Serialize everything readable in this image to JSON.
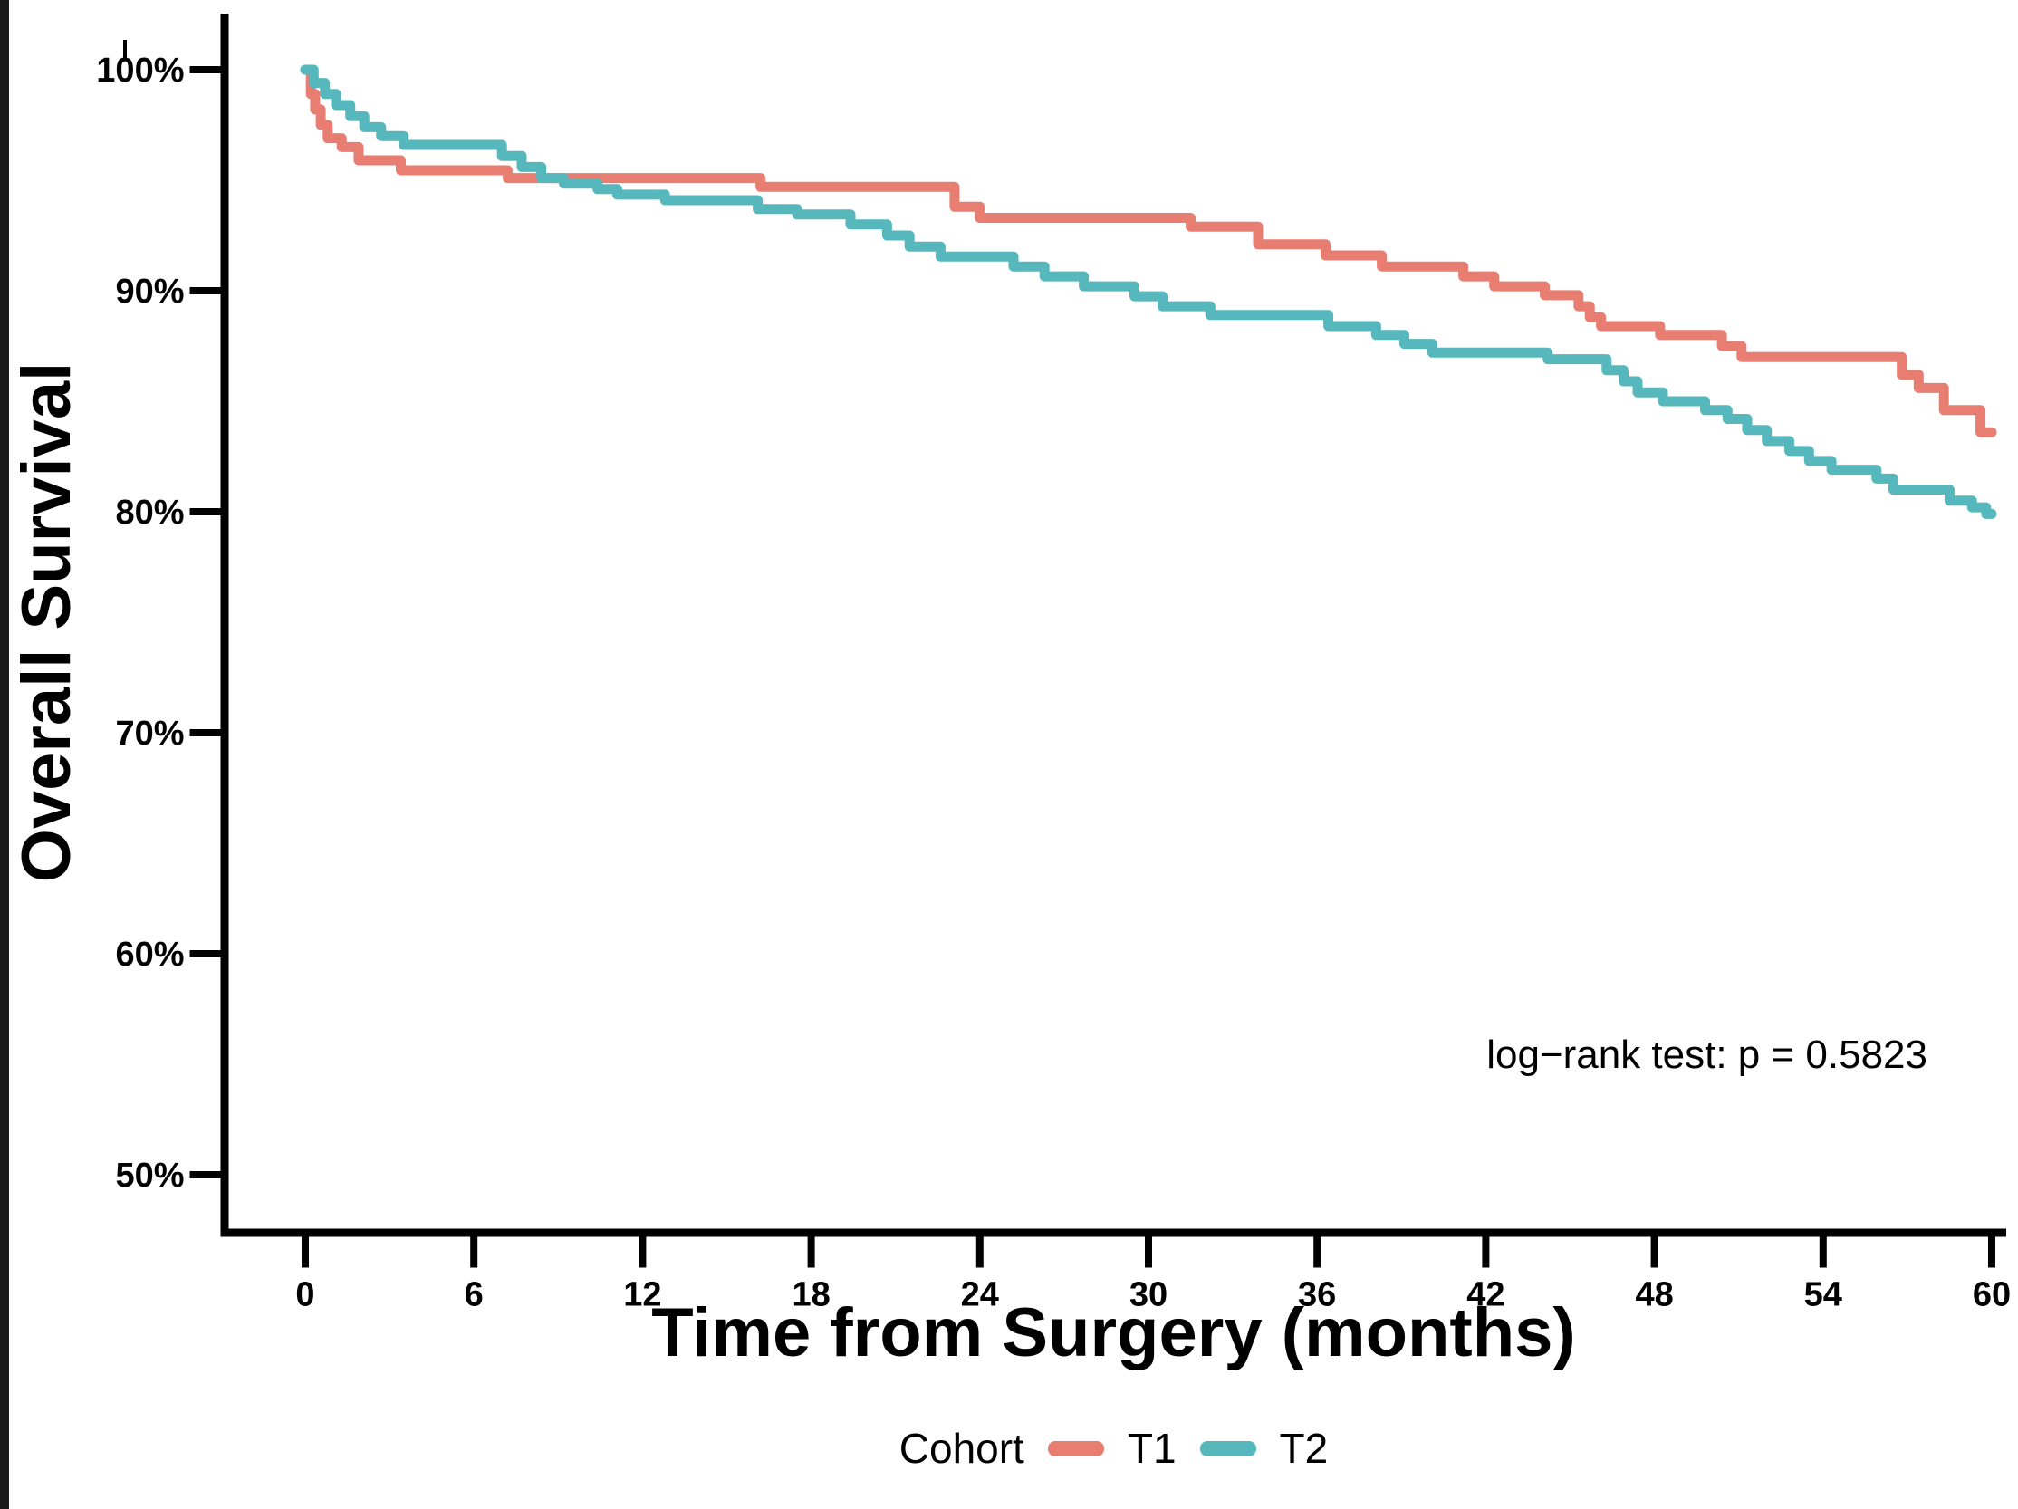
{
  "figure": {
    "y_axis_title": "Overall Survival",
    "x_axis_title": "Time from Surgery (months)",
    "annotation_text": "log−rank test: p = 0.5823",
    "legend_title": "Cohort"
  },
  "chart_data": {
    "type": "line",
    "subtype": "kaplan_meier_step",
    "title": "",
    "xlabel": "Time from Surgery (months)",
    "ylabel": "Overall Survival",
    "xlim": [
      0,
      60
    ],
    "ylim_pct": [
      47.5,
      101.5
    ],
    "x_ticks": [
      0,
      6,
      12,
      18,
      24,
      30,
      36,
      42,
      48,
      54,
      60
    ],
    "y_ticks_pct": [
      50,
      60,
      70,
      80,
      90,
      100
    ],
    "y_tick_suffix": "%",
    "grid": false,
    "legend_position": "bottom",
    "legend_title": "Cohort",
    "annotation": {
      "text": "log−rank test: p = 0.5823",
      "anchor": "bottom-right"
    },
    "axis_color": "#000000",
    "series": [
      {
        "name": "T1",
        "color": "#E87E72",
        "steps": [
          [
            0,
            100
          ],
          [
            0.2,
            98.9
          ],
          [
            0.35,
            98.2
          ],
          [
            0.55,
            97.5
          ],
          [
            0.8,
            96.9
          ],
          [
            1.3,
            96.5
          ],
          [
            1.9,
            95.9
          ],
          [
            3.4,
            95.45
          ],
          [
            7.2,
            95.1
          ],
          [
            16.2,
            94.7
          ],
          [
            23.1,
            93.8
          ],
          [
            24.0,
            93.3
          ],
          [
            31.5,
            92.9
          ],
          [
            33.9,
            92.1
          ],
          [
            36.3,
            91.6
          ],
          [
            38.3,
            91.1
          ],
          [
            41.2,
            90.65
          ],
          [
            42.3,
            90.2
          ],
          [
            44.1,
            89.8
          ],
          [
            45.3,
            89.3
          ],
          [
            45.7,
            88.8
          ],
          [
            46.1,
            88.4
          ],
          [
            48.2,
            88.0
          ],
          [
            50.4,
            87.5
          ],
          [
            51.1,
            87.0
          ],
          [
            56.8,
            86.2
          ],
          [
            57.4,
            85.6
          ],
          [
            58.3,
            84.6
          ],
          [
            59.6,
            83.6
          ],
          [
            60,
            83.6
          ]
        ]
      },
      {
        "name": "T2",
        "color": "#56B8BD",
        "steps": [
          [
            0,
            100
          ],
          [
            0.3,
            99.4
          ],
          [
            0.7,
            98.9
          ],
          [
            1.1,
            98.4
          ],
          [
            1.6,
            97.9
          ],
          [
            2.1,
            97.4
          ],
          [
            2.7,
            97.0
          ],
          [
            3.5,
            96.6
          ],
          [
            7.0,
            96.1
          ],
          [
            7.7,
            95.6
          ],
          [
            8.4,
            95.1
          ],
          [
            9.2,
            94.85
          ],
          [
            10.4,
            94.6
          ],
          [
            11.1,
            94.35
          ],
          [
            12.8,
            94.1
          ],
          [
            16.1,
            93.7
          ],
          [
            17.5,
            93.45
          ],
          [
            19.4,
            93.0
          ],
          [
            20.7,
            92.5
          ],
          [
            21.5,
            92.0
          ],
          [
            22.6,
            91.55
          ],
          [
            25.2,
            91.1
          ],
          [
            26.3,
            90.65
          ],
          [
            27.7,
            90.2
          ],
          [
            29.5,
            89.75
          ],
          [
            30.5,
            89.3
          ],
          [
            32.2,
            88.9
          ],
          [
            36.4,
            88.4
          ],
          [
            38.1,
            88.0
          ],
          [
            39.1,
            87.6
          ],
          [
            40.1,
            87.2
          ],
          [
            44.2,
            86.9
          ],
          [
            46.3,
            86.4
          ],
          [
            46.9,
            85.9
          ],
          [
            47.4,
            85.4
          ],
          [
            48.3,
            85.0
          ],
          [
            49.8,
            84.6
          ],
          [
            50.6,
            84.2
          ],
          [
            51.3,
            83.7
          ],
          [
            52.0,
            83.2
          ],
          [
            52.8,
            82.75
          ],
          [
            53.5,
            82.3
          ],
          [
            54.3,
            81.9
          ],
          [
            55.9,
            81.5
          ],
          [
            56.5,
            81.0
          ],
          [
            58.5,
            80.5
          ],
          [
            59.3,
            80.2
          ],
          [
            59.8,
            79.9
          ],
          [
            60,
            79.9
          ]
        ]
      }
    ]
  }
}
